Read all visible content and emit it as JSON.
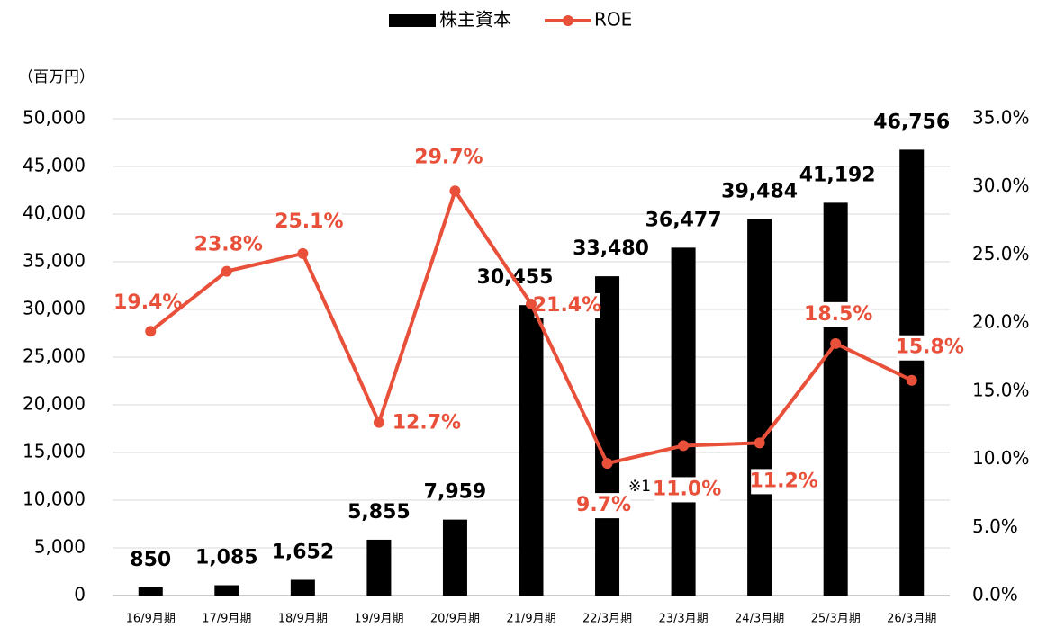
{
  "chart_data": {
    "type": "bar",
    "unit_label": "（百万円）",
    "annotation": "※1",
    "categories": [
      "16/9月期",
      "17/9月期",
      "18/9月期",
      "19/9月期",
      "20/9月期",
      "21/9月期",
      "22/3月期",
      "23/3月期",
      "24/3月期",
      "25/3月期",
      "26/3月期"
    ],
    "series": [
      {
        "name": "株主資本",
        "type": "bar",
        "color": "#000000",
        "values": [
          850,
          1085,
          1652,
          5855,
          7959,
          30455,
          33480,
          36477,
          39484,
          41192,
          46756
        ],
        "value_labels": [
          "850",
          "1,085",
          "1,652",
          "5,855",
          "7,959",
          "30,455",
          "33,480",
          "36,477",
          "39,484",
          "41,192",
          "46,756"
        ]
      },
      {
        "name": "ROE",
        "type": "line",
        "axis": "y2",
        "color": "#e8503a",
        "values": [
          19.4,
          23.8,
          25.1,
          12.7,
          29.7,
          21.4,
          9.7,
          11.0,
          11.2,
          18.5,
          15.8
        ],
        "value_labels": [
          "19.4%",
          "23.8%",
          "25.1%",
          "12.7%",
          "29.7%",
          "21.4%",
          "9.7%",
          "11.0%",
          "11.2%",
          "18.5%",
          "15.8%"
        ]
      }
    ],
    "ylim": [
      0,
      50000
    ],
    "yticks": [
      0,
      {
        "value": 5000,
        "label": "5,000"
      },
      {
        "value": 10000,
        "label": "10,000"
      },
      {
        "value": 15000,
        "label": "15,000"
      },
      {
        "value": 20000,
        "label": "20,000"
      },
      {
        "value": 25000,
        "label": "25,000"
      },
      {
        "value": 30000,
        "label": "30,000"
      },
      {
        "value": 35000,
        "label": "35,000"
      },
      {
        "value": 40000,
        "label": "40,000"
      },
      {
        "value": 45000,
        "label": "45,000"
      },
      {
        "value": 50000,
        "label": "50,000"
      }
    ],
    "y2lim": [
      0,
      35
    ],
    "y2ticks": [
      {
        "value": 0,
        "label": "0.0%"
      },
      {
        "value": 5,
        "label": "5.0%"
      },
      {
        "value": 10,
        "label": "10.0%"
      },
      {
        "value": 15,
        "label": "15.0%"
      },
      {
        "value": 20,
        "label": "20.0%"
      },
      {
        "value": 25,
        "label": "25.0%"
      },
      {
        "value": 30,
        "label": "30.0%"
      },
      {
        "value": 35,
        "label": "35.0%"
      }
    ],
    "grid": true,
    "legend": "top"
  }
}
